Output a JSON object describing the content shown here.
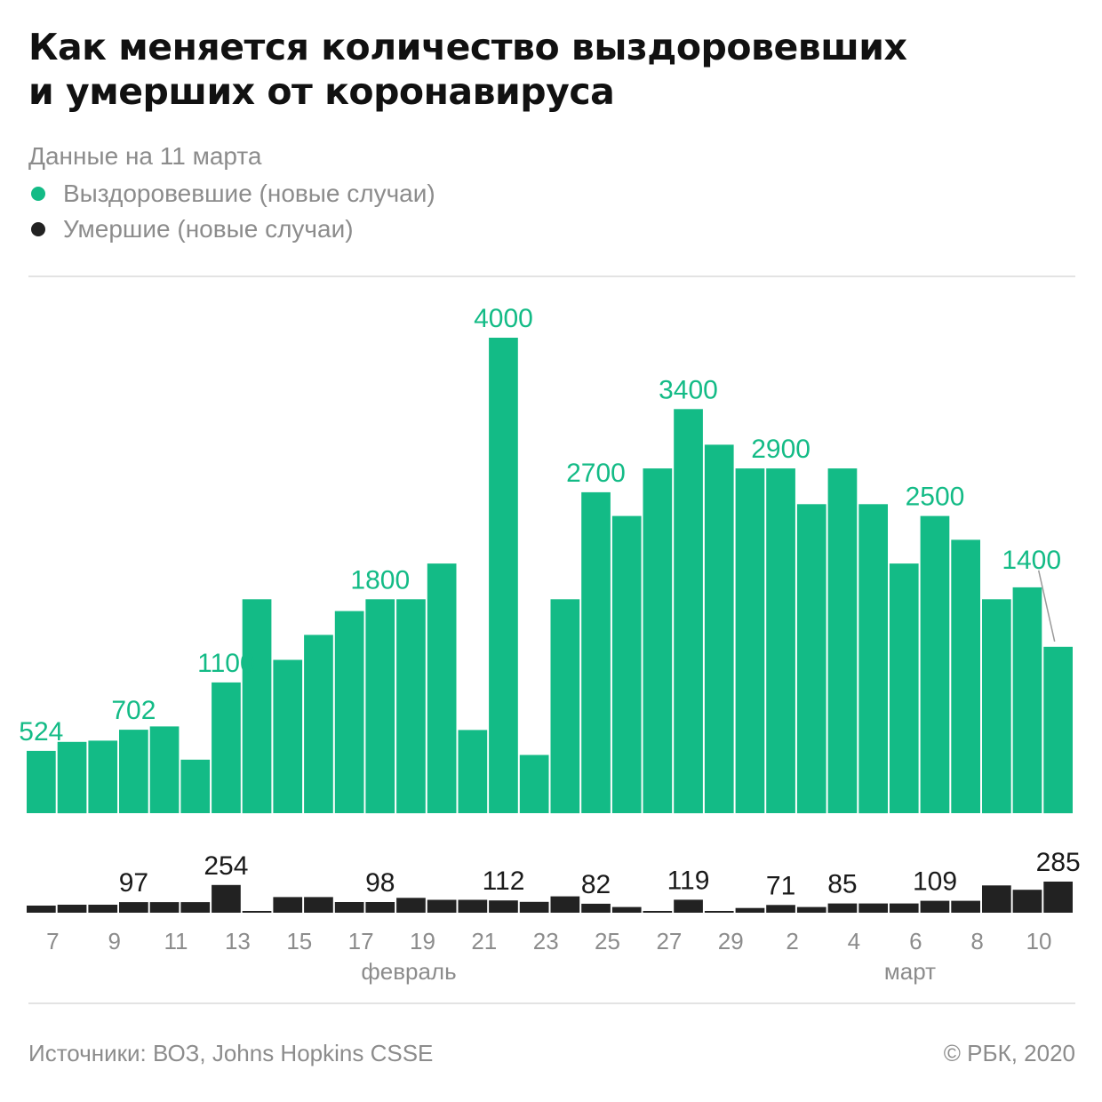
{
  "title_line1": "Как меняется количество выздоровевших",
  "title_line2": "и умерших от коронавируса",
  "subtitle": "Данные на 11 марта",
  "legend": [
    {
      "label": "Выздоровевшие (новые случаи)",
      "color": "#13bb86"
    },
    {
      "label": "Умершие (новые случаи)",
      "color": "#222222"
    }
  ],
  "footer": {
    "source": "Источники: ВОЗ, Johns Hopkins CSSE",
    "copyright": "© РБК, 2020"
  },
  "chart_data": {
    "type": "bar",
    "categories": [
      "7",
      "8",
      "9",
      "10",
      "11",
      "12",
      "13",
      "14",
      "15",
      "16",
      "17",
      "18",
      "19",
      "20",
      "21",
      "22",
      "23",
      "24",
      "25",
      "26",
      "27",
      "28",
      "29",
      "1",
      "2",
      "3",
      "4",
      "5",
      "6",
      "7",
      "8",
      "9",
      "10",
      "11"
    ],
    "tick_labels": [
      "7",
      "9",
      "11",
      "13",
      "15",
      "17",
      "19",
      "21",
      "23",
      "25",
      "27",
      "29",
      "2",
      "4",
      "6",
      "8",
      "10"
    ],
    "month_labels": [
      "февраль",
      "март"
    ],
    "series": [
      {
        "name": "Выздоровевшие (новые случаи)",
        "color": "#13bb86",
        "values": [
          524,
          600,
          610,
          702,
          730,
          450,
          1100,
          1800,
          1290,
          1500,
          1700,
          1800,
          1800,
          2100,
          700,
          4000,
          490,
          1800,
          2700,
          2500,
          2900,
          3400,
          3100,
          2900,
          2900,
          2600,
          2900,
          2600,
          2100,
          2500,
          2300,
          1800,
          1900,
          1400
        ],
        "labels": {
          "0": "524",
          "3": "702",
          "6": "1100",
          "11": "1800",
          "15": "4000",
          "18": "2700",
          "21": "3400",
          "24": "2900",
          "29": "2500",
          "33": "1400"
        }
      },
      {
        "name": "Умершие (новые случаи)",
        "color": "#222222",
        "values": [
          65,
          73,
          73,
          97,
          97,
          97,
          254,
          13,
          143,
          143,
          98,
          98,
          136,
          118,
          118,
          112,
          99,
          150,
          82,
          52,
          13,
          119,
          13,
          43,
          71,
          52,
          85,
          85,
          85,
          109,
          109,
          250,
          210,
          285
        ],
        "labels": {
          "3": "97",
          "6": "254",
          "11": "98",
          "15": "112",
          "18": "82",
          "21": "119",
          "24": "71",
          "26": "85",
          "29": "109",
          "33": "285"
        }
      }
    ],
    "ylim_recovered": [
      0,
      4000
    ],
    "ylim_deaths": [
      0,
      285
    ]
  }
}
